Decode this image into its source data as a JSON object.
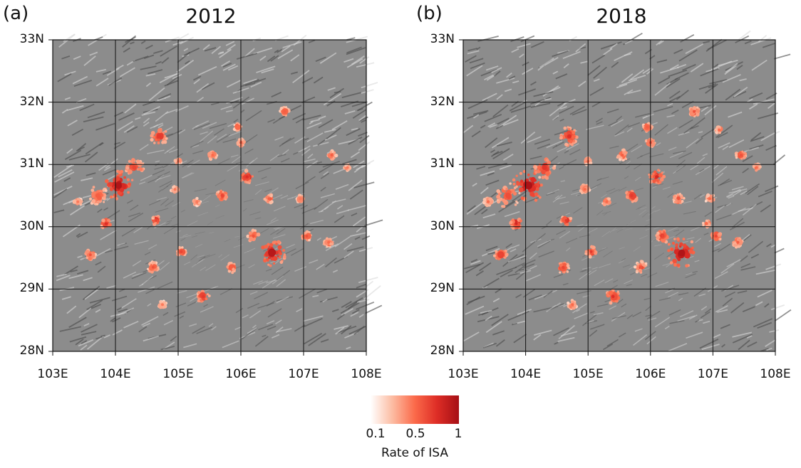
{
  "panels": [
    {
      "id": "a",
      "label": "(a)",
      "title": "2012",
      "urban_patches": [
        {
          "lon": 104.05,
          "lat": 30.66,
          "r": 0.95,
          "v": 0.95
        },
        {
          "lon": 103.72,
          "lat": 30.5,
          "r": 0.7,
          "v": 0.55
        },
        {
          "lon": 104.3,
          "lat": 30.95,
          "r": 0.6,
          "v": 0.65
        },
        {
          "lon": 104.7,
          "lat": 31.45,
          "r": 0.55,
          "v": 0.7
        },
        {
          "lon": 103.85,
          "lat": 30.05,
          "r": 0.35,
          "v": 0.75
        },
        {
          "lon": 104.65,
          "lat": 30.1,
          "r": 0.3,
          "v": 0.65
        },
        {
          "lon": 103.6,
          "lat": 29.55,
          "r": 0.35,
          "v": 0.6
        },
        {
          "lon": 104.6,
          "lat": 29.35,
          "r": 0.35,
          "v": 0.6
        },
        {
          "lon": 105.05,
          "lat": 29.6,
          "r": 0.3,
          "v": 0.65
        },
        {
          "lon": 105.4,
          "lat": 28.88,
          "r": 0.4,
          "v": 0.7
        },
        {
          "lon": 105.7,
          "lat": 30.5,
          "r": 0.35,
          "v": 0.65
        },
        {
          "lon": 106.1,
          "lat": 30.8,
          "r": 0.45,
          "v": 0.75
        },
        {
          "lon": 106.5,
          "lat": 29.58,
          "r": 0.85,
          "v": 0.92
        },
        {
          "lon": 106.2,
          "lat": 29.85,
          "r": 0.4,
          "v": 0.6
        },
        {
          "lon": 105.85,
          "lat": 29.35,
          "r": 0.35,
          "v": 0.55
        },
        {
          "lon": 107.05,
          "lat": 29.85,
          "r": 0.3,
          "v": 0.6
        },
        {
          "lon": 107.4,
          "lat": 29.75,
          "r": 0.3,
          "v": 0.5
        },
        {
          "lon": 106.7,
          "lat": 31.85,
          "r": 0.3,
          "v": 0.55
        },
        {
          "lon": 105.55,
          "lat": 31.15,
          "r": 0.3,
          "v": 0.5
        },
        {
          "lon": 106.45,
          "lat": 30.45,
          "r": 0.3,
          "v": 0.55
        },
        {
          "lon": 106.0,
          "lat": 31.35,
          "r": 0.25,
          "v": 0.55
        },
        {
          "lon": 107.45,
          "lat": 31.15,
          "r": 0.3,
          "v": 0.55
        },
        {
          "lon": 105.95,
          "lat": 31.6,
          "r": 0.25,
          "v": 0.5
        },
        {
          "lon": 104.95,
          "lat": 30.6,
          "r": 0.25,
          "v": 0.45
        },
        {
          "lon": 105.3,
          "lat": 30.4,
          "r": 0.25,
          "v": 0.45
        },
        {
          "lon": 104.75,
          "lat": 28.75,
          "r": 0.25,
          "v": 0.45
        },
        {
          "lon": 103.4,
          "lat": 30.4,
          "r": 0.25,
          "v": 0.45
        },
        {
          "lon": 106.95,
          "lat": 30.45,
          "r": 0.25,
          "v": 0.45
        },
        {
          "lon": 107.7,
          "lat": 30.95,
          "r": 0.2,
          "v": 0.45
        },
        {
          "lon": 105.0,
          "lat": 31.05,
          "r": 0.2,
          "v": 0.45
        }
      ]
    },
    {
      "id": "b",
      "label": "(b)",
      "title": "2018",
      "urban_patches": [
        {
          "lon": 104.05,
          "lat": 30.66,
          "r": 1.05,
          "v": 0.97
        },
        {
          "lon": 103.72,
          "lat": 30.5,
          "r": 0.8,
          "v": 0.62
        },
        {
          "lon": 104.3,
          "lat": 30.95,
          "r": 0.7,
          "v": 0.72
        },
        {
          "lon": 104.7,
          "lat": 31.45,
          "r": 0.6,
          "v": 0.75
        },
        {
          "lon": 103.85,
          "lat": 30.05,
          "r": 0.4,
          "v": 0.8
        },
        {
          "lon": 104.65,
          "lat": 30.1,
          "r": 0.35,
          "v": 0.7
        },
        {
          "lon": 103.6,
          "lat": 29.55,
          "r": 0.4,
          "v": 0.65
        },
        {
          "lon": 104.6,
          "lat": 29.35,
          "r": 0.4,
          "v": 0.65
        },
        {
          "lon": 105.05,
          "lat": 29.6,
          "r": 0.35,
          "v": 0.7
        },
        {
          "lon": 105.4,
          "lat": 28.88,
          "r": 0.45,
          "v": 0.75
        },
        {
          "lon": 105.7,
          "lat": 30.5,
          "r": 0.4,
          "v": 0.7
        },
        {
          "lon": 106.1,
          "lat": 30.8,
          "r": 0.5,
          "v": 0.8
        },
        {
          "lon": 106.5,
          "lat": 29.58,
          "r": 1.0,
          "v": 0.95
        },
        {
          "lon": 106.2,
          "lat": 29.85,
          "r": 0.45,
          "v": 0.65
        },
        {
          "lon": 105.85,
          "lat": 29.35,
          "r": 0.4,
          "v": 0.6
        },
        {
          "lon": 107.05,
          "lat": 29.85,
          "r": 0.35,
          "v": 0.65
        },
        {
          "lon": 107.4,
          "lat": 29.75,
          "r": 0.35,
          "v": 0.55
        },
        {
          "lon": 106.7,
          "lat": 31.85,
          "r": 0.35,
          "v": 0.6
        },
        {
          "lon": 105.55,
          "lat": 31.15,
          "r": 0.35,
          "v": 0.55
        },
        {
          "lon": 106.45,
          "lat": 30.45,
          "r": 0.35,
          "v": 0.6
        },
        {
          "lon": 106.0,
          "lat": 31.35,
          "r": 0.3,
          "v": 0.6
        },
        {
          "lon": 107.45,
          "lat": 31.15,
          "r": 0.35,
          "v": 0.6
        },
        {
          "lon": 105.95,
          "lat": 31.6,
          "r": 0.3,
          "v": 0.55
        },
        {
          "lon": 104.95,
          "lat": 30.6,
          "r": 0.3,
          "v": 0.5
        },
        {
          "lon": 105.3,
          "lat": 30.4,
          "r": 0.3,
          "v": 0.5
        },
        {
          "lon": 104.75,
          "lat": 28.75,
          "r": 0.3,
          "v": 0.5
        },
        {
          "lon": 103.4,
          "lat": 30.4,
          "r": 0.3,
          "v": 0.5
        },
        {
          "lon": 106.95,
          "lat": 30.45,
          "r": 0.3,
          "v": 0.5
        },
        {
          "lon": 107.7,
          "lat": 30.95,
          "r": 0.25,
          "v": 0.5
        },
        {
          "lon": 105.0,
          "lat": 31.05,
          "r": 0.25,
          "v": 0.5
        },
        {
          "lon": 107.1,
          "lat": 31.55,
          "r": 0.25,
          "v": 0.5
        },
        {
          "lon": 106.9,
          "lat": 30.05,
          "r": 0.25,
          "v": 0.5
        }
      ]
    }
  ],
  "axes": {
    "lat_labels": [
      "33N",
      "32N",
      "31N",
      "30N",
      "29N",
      "28N"
    ],
    "lat_values": [
      33,
      32,
      31,
      30,
      29,
      28
    ],
    "lon_labels": [
      "103E",
      "104E",
      "105E",
      "106E",
      "107E",
      "108E"
    ],
    "lon_values": [
      103,
      104,
      105,
      106,
      107,
      108
    ],
    "lon_range": [
      103,
      108
    ],
    "lat_range": [
      28,
      33
    ]
  },
  "colorbar": {
    "label": "Rate of ISA",
    "ticks": [
      "0.1",
      "0.5",
      "1"
    ],
    "tick_values": [
      0.1,
      0.5,
      1
    ],
    "range": [
      0,
      1
    ],
    "colors": [
      "#ffffff",
      "#fcbba1",
      "#fb6a4a",
      "#de2d26",
      "#a50f15"
    ]
  },
  "colors": {
    "terrain_base": "#8c8c8c",
    "grid": "#111111"
  }
}
